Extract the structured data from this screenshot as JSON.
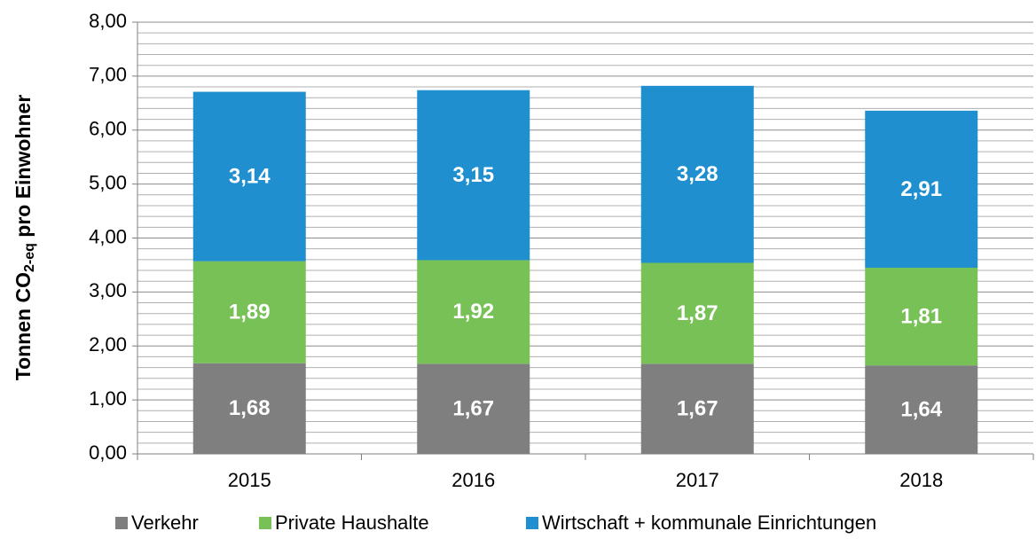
{
  "chart_data": {
    "type": "stacked_bar",
    "ylabel_parts": [
      "Tonnen CO",
      "2-eq",
      "pro Einwohner"
    ],
    "categories": [
      "2015",
      "2016",
      "2017",
      "2018"
    ],
    "series": [
      {
        "name": "Verkehr",
        "color": "#7f7f7f",
        "values": [
          1.68,
          1.67,
          1.67,
          1.64
        ],
        "value_labels": [
          "1,68",
          "1,67",
          "1,67",
          "1,64"
        ]
      },
      {
        "name": "Private Haushalte",
        "color": "#77c157",
        "values": [
          1.89,
          1.92,
          1.87,
          1.81
        ],
        "value_labels": [
          "1,89",
          "1,92",
          "1,87",
          "1,81"
        ]
      },
      {
        "name": "Wirtschaft + kommunale Einrichtungen",
        "color": "#1f8fcf",
        "values": [
          3.14,
          3.15,
          3.28,
          2.91
        ],
        "value_labels": [
          "3,14",
          "3,15",
          "3,28",
          "2,91"
        ]
      }
    ],
    "ylim": [
      0,
      8
    ],
    "yticks": [
      {
        "value": 0,
        "label": "0,00"
      },
      {
        "value": 1,
        "label": "1,00"
      },
      {
        "value": 2,
        "label": "2,00"
      },
      {
        "value": 3,
        "label": "3,00"
      },
      {
        "value": 4,
        "label": "4,00"
      },
      {
        "value": 5,
        "label": "5,00"
      },
      {
        "value": 6,
        "label": "6,00"
      },
      {
        "value": 7,
        "label": "7,00"
      },
      {
        "value": 8,
        "label": "8,00"
      }
    ],
    "minor_yticks": [
      0.2,
      0.4,
      0.6,
      0.8,
      1.2,
      1.4,
      1.6,
      1.8,
      2.2,
      2.4,
      2.6,
      2.8,
      3.2,
      3.4,
      3.6,
      3.8,
      4.2,
      4.4,
      4.6,
      4.8,
      5.2,
      5.4,
      5.6,
      5.8,
      6.2,
      6.4,
      6.6,
      6.8,
      7.2,
      7.4,
      7.6,
      7.8
    ],
    "grid": true,
    "legend": "bottom"
  }
}
